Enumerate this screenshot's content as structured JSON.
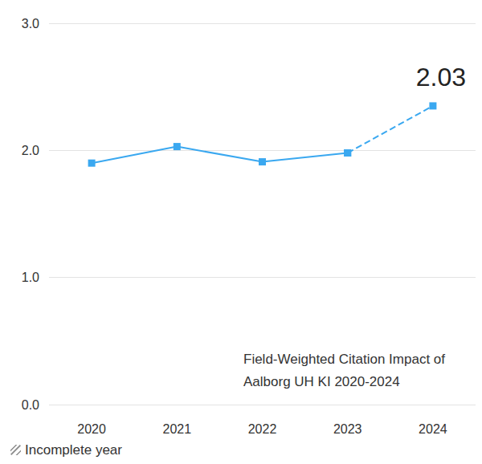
{
  "chart_data": {
    "type": "line",
    "title": "Field-Weighted Citation Impact of\nAalborg UH KI 2020-2024",
    "annotation": "2.03",
    "categories": [
      "2020",
      "2021",
      "2022",
      "2023",
      "2024"
    ],
    "series": [
      {
        "color": "#3aa8f0",
        "line_style": "solid",
        "marker": "square",
        "values": [
          1.9,
          2.03,
          1.91,
          1.98,
          null
        ]
      },
      {
        "name": "Incomplete year",
        "color": "#3aa8f0",
        "line_style": "dashed",
        "marker": "square",
        "values": [
          null,
          null,
          null,
          1.98,
          2.35
        ]
      }
    ],
    "ylim": [
      0,
      3
    ],
    "yticks": [
      {
        "value": 0,
        "label": "0.0"
      },
      {
        "value": 1,
        "label": "1.0"
      },
      {
        "value": 2,
        "label": "2.0"
      },
      {
        "value": 3,
        "label": "3.0"
      }
    ],
    "grid": true,
    "legend": "bottom-left",
    "data_labels": false
  }
}
